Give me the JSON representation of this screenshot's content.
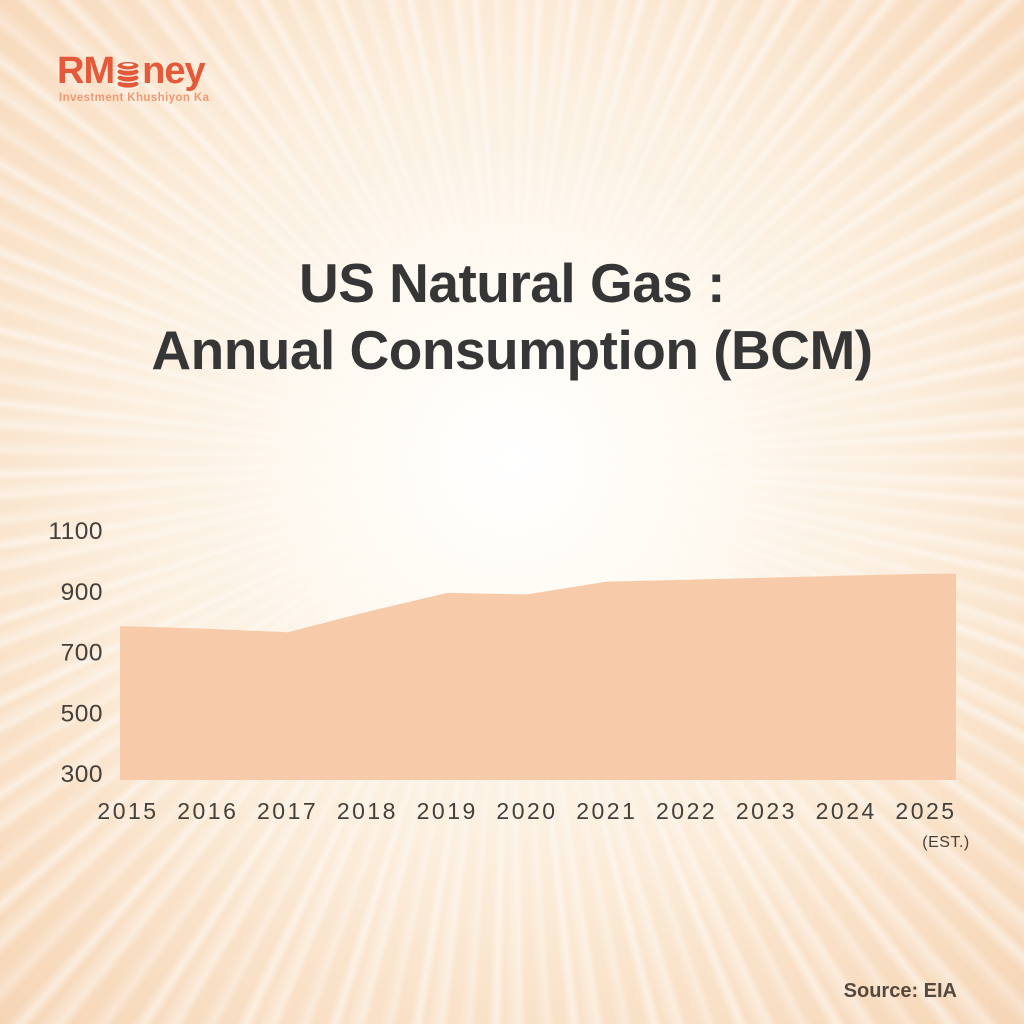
{
  "brand": {
    "name_prefix": "RM",
    "name_suffix": "ney",
    "tagline": "Investment Khushiyon Ka",
    "logo_color": "#e4593a",
    "coin_icon": "coin-stack"
  },
  "title": {
    "line1": "US Natural Gas :",
    "line2": "Annual Consumption (BCM)"
  },
  "source_label": "Source: EIA",
  "chart_data": {
    "type": "area",
    "title": "US Natural Gas : Annual Consumption (BCM)",
    "unit": "BCM",
    "categories": [
      "2015",
      "2016",
      "2017",
      "2018",
      "2019",
      "2020",
      "2021",
      "2022",
      "2023",
      "2024",
      "2025"
    ],
    "last_category_note": "(EST.)",
    "values": [
      785,
      777,
      765,
      833,
      895,
      890,
      932,
      938,
      945,
      952,
      958
    ],
    "baseline": 300,
    "y_ticks": [
      300,
      500,
      700,
      900,
      1100
    ],
    "ylim": [
      300,
      1150
    ],
    "xlabel": "",
    "ylabel": "",
    "grid": false,
    "legend": false,
    "fill_color": "#f7cbaa",
    "label_color": "#45403a"
  }
}
